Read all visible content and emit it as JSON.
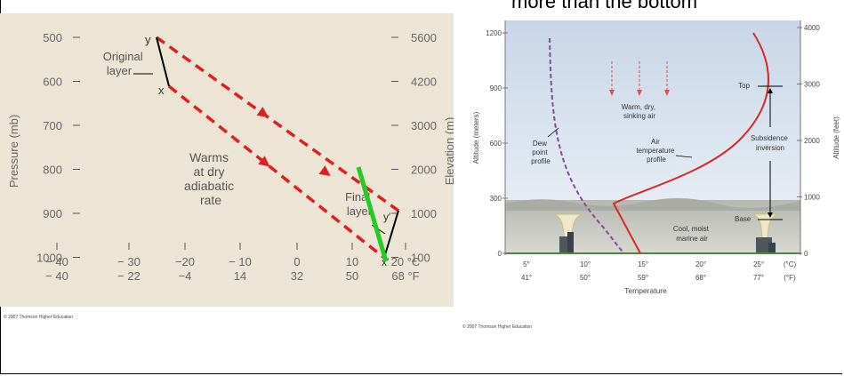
{
  "heading_fragment": "more than the bottom",
  "left_figure": {
    "y_axis_left_label": "Pressure (mb)",
    "y_axis_right_label": "Elevation (m)",
    "pressure_ticks": [
      "500",
      "600",
      "700",
      "800",
      "900",
      "1000"
    ],
    "elevation_ticks": [
      "5600",
      "4200",
      "3000",
      "2000",
      "1000",
      "100"
    ],
    "celsius_ticks": [
      "− 40",
      "− 30",
      "−20",
      "− 10",
      "0",
      "10",
      "20 °C"
    ],
    "fahrenheit_ticks": [
      "− 40",
      "− 22",
      "−4",
      "14",
      "32",
      "50",
      "68 °F"
    ],
    "original_layer_label": [
      "Original",
      "layer"
    ],
    "warms_label": [
      "Warms",
      "at dry",
      "adiabatic",
      "rate"
    ],
    "final_layer_label": [
      "Final",
      "layer"
    ],
    "point_y": "y",
    "point_x": "x",
    "point_y_prime": "y′",
    "point_x_prime": "x′",
    "copyright": "© 2007 Thomson Higher Education",
    "colors": {
      "background": "#ece5d6",
      "arrow": "#e02020",
      "marker": "#22cc22"
    }
  },
  "right_figure": {
    "y_axis_left_label": "Altitude (meters)",
    "y_axis_right_label": "Altitude (feet)",
    "meter_ticks": [
      "1200",
      "900",
      "600",
      "300",
      "0"
    ],
    "feet_ticks": [
      "4000",
      "3000",
      "2000",
      "1000",
      "0"
    ],
    "celsius_ticks": [
      "5°",
      "10°",
      "15°",
      "20°",
      "25°",
      "(°C)"
    ],
    "fahrenheit_ticks": [
      "41°",
      "50°",
      "59°",
      "68°",
      "77°",
      "(°F)"
    ],
    "x_axis_label": "Temperature",
    "sinking_air_label": [
      "Warm, dry,",
      "sinking air"
    ],
    "dew_point_label": [
      "Dew",
      "point",
      "profile"
    ],
    "air_temp_label": [
      "Air",
      "temperature",
      "profile"
    ],
    "top_label": "Top",
    "base_label": "Base",
    "subsidence_label": [
      "Subsidence",
      "inversion"
    ],
    "marine_air_label": [
      "Cool, moist",
      "marine air"
    ],
    "copyright": "© 2007 Thomson Higher Education",
    "colors": {
      "sky_top": "#c8d6e8",
      "sky_bottom": "#eef2f7",
      "profile": "#d42a2a",
      "dew": "#8a4a9a"
    }
  }
}
